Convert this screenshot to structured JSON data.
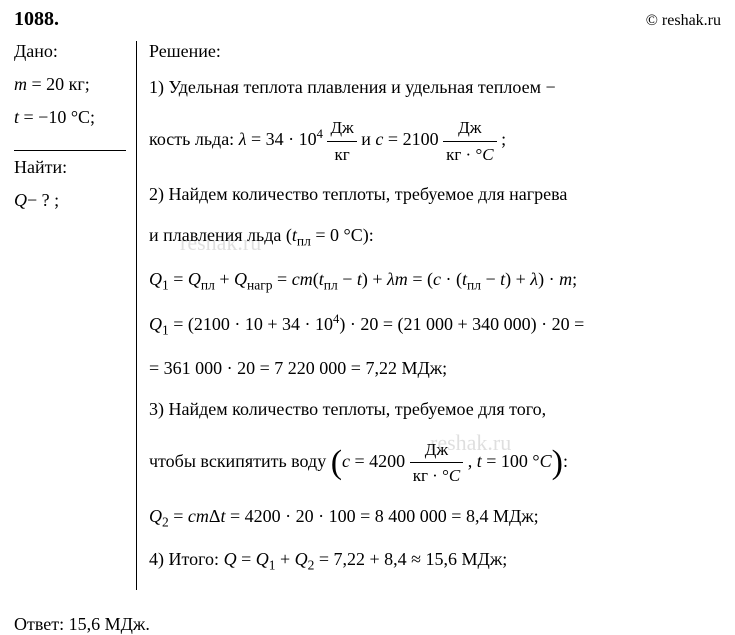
{
  "header": {
    "problem_number": "1088.",
    "copyright": "© reshak.ru"
  },
  "given": {
    "label": "Дано:",
    "lines": {
      "mass": {
        "var": "m",
        "eq": " = 20 кг;"
      },
      "temp": {
        "var": "t",
        "eq": " = −10 °C;"
      }
    }
  },
  "find": {
    "label": "Найти:",
    "line": {
      "var": "Q",
      "eq": "− ? ;"
    }
  },
  "solution": {
    "label": "Решение:",
    "step1_a": "1) Удельная теплота плавления и удельная теплоем −",
    "step1_b_prefix": "кость льда:  ",
    "lambda_var": "λ",
    "lambda_eq": " = 34 · 10",
    "lambda_exp": "4",
    "frac_dzh": "Дж",
    "frac_kg": "кг",
    "and": "  и  ",
    "c_var": "c",
    "c_eq": " = 2100  ",
    "frac_kgc": "кг · °",
    "C_it": "C",
    "semicolon": " ;",
    "step2_a": "2) Найдем количество теплоты, требуемое для нагрева",
    "step2_b_prefix": "и плавления льда (",
    "t_pl_var": "t",
    "t_pl_sub": "пл",
    "t_pl_val": " = 0 °C):",
    "q1_line1": "Q₁ = Qпл + Qнагр = cm(tпл − t) + λm = (c · (tпл − t) + λ) · m;",
    "q1_eq_a": " = ",
    "q1_eq_b": " + ",
    "q1_var": "Q",
    "sub1": "1",
    "qpl_sub": "пл",
    "qnagr_sub": "нагр",
    "cm_part": "cm",
    "minus_t": " − ",
    "plus_lm": " + ",
    "lm_var": "λm",
    "eq_open": " = (",
    "c_dot": " · (",
    "close_plus": ") + ",
    "close_m": ") · ",
    "m_var": "m",
    "q1_calc_a": " = (2100 · 10 + 34 · 10",
    "q1_calc_exp": "4",
    "q1_calc_b": ") · 20 = (21 000 + 340 000) · 20 =",
    "q1_calc_c": "= 361 000 · 20 = 7 220 000 = 7,22 МДж;",
    "step3_a": "3) Найдем количество теплоты, требуемое для того,",
    "step3_b_prefix": "чтобы вскипятить воду ",
    "c_water": " = 4200 ",
    "t_boil": " = 100 °",
    "q2_var": "Q",
    "sub2": "2",
    "q2_eq": " = ",
    "cmdt": "cm",
    "delta": "Δ",
    "t_var": "t",
    "q2_calc": " = 4200 · 20 · 100 = 8 400 000 = 8,4 МДж;",
    "step4_prefix": "4) Итого:  ",
    "Q_var": "Q",
    "q_total": " = 7,22 + 8,4 ≈ 15,6 МДж;"
  },
  "answer": {
    "label": "Ответ:  ",
    "value": "15,6 МДж."
  },
  "watermark": "reshak.ru",
  "colors": {
    "text": "#000000",
    "background": "#ffffff"
  }
}
